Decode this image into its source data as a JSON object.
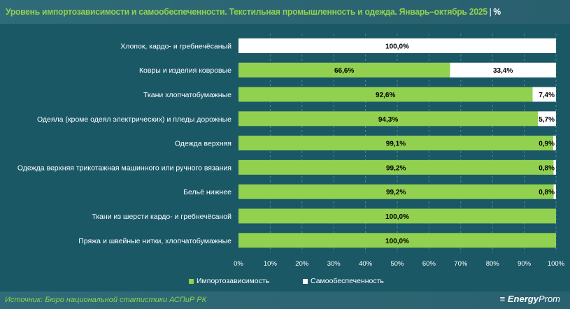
{
  "title": "Уровень импортозависимости и самообеспеченности. Текстильная промышленность и одежда. Январь–октябрь 2025",
  "unit": "%",
  "source": "Источник: Бюро национальной статистики АСПиР РК",
  "logo": {
    "bold": "Energy",
    "thin": "Prom",
    "icon": "energyprom-logo-icon"
  },
  "colors": {
    "import": "#92d050",
    "self": "#ffffff",
    "background": "#1a5866"
  },
  "chart_data": {
    "type": "bar",
    "orientation": "horizontal",
    "stacked": true,
    "categories": [
      "Хлопок, кардо- и гребнечёсаный",
      "Ковры и изделия ковровые",
      "Ткани хлопчатобумажные",
      "Одеяла (кроме одеял электрических) и пледы дорожные",
      "Одежда верхняя",
      "Одежда верхняя трикотажная машинного или ручного вязания",
      "Бельё нижнее",
      "Ткани из шерсти кардо- и гребнечёсаной",
      "Пряжа и швейные нитки, хлопчатобумажные"
    ],
    "series": [
      {
        "name": "Импортозависимость",
        "values": [
          0,
          66.6,
          92.6,
          94.3,
          99.1,
          99.2,
          99.2,
          100,
          100
        ],
        "labels": [
          "",
          "66,6%",
          "92,6%",
          "94,3%",
          "99,1%",
          "99,2%",
          "99,2%",
          "100,0%",
          "100,0%"
        ]
      },
      {
        "name": "Самообеспеченность",
        "values": [
          100,
          33.4,
          7.4,
          5.7,
          0.9,
          0.8,
          0.8,
          0,
          0
        ],
        "labels": [
          "100,0%",
          "33,4%",
          "7,4%",
          "5,7%",
          "0,9%",
          "0,8%",
          "0,8%",
          "",
          ""
        ]
      }
    ],
    "xlim": [
      0,
      100
    ],
    "xticks": [
      "0%",
      "10%",
      "20%",
      "30%",
      "40%",
      "50%",
      "60%",
      "70%",
      "80%",
      "90%",
      "100%"
    ],
    "grid": "vertical dashed",
    "legend": "bottom"
  }
}
